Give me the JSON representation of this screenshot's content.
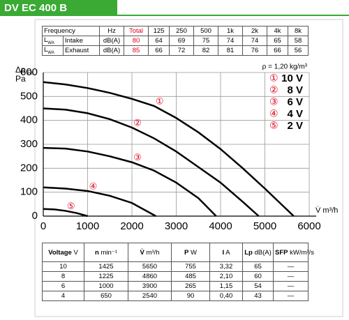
{
  "header": {
    "title": "DV EC 400 B"
  },
  "sound_table": {
    "header": [
      "Frequency",
      "Hz",
      "Total",
      "125",
      "250",
      "500",
      "1k",
      "2k",
      "4k",
      "8k"
    ],
    "rows": [
      {
        "symbol": "L",
        "sub": "WA",
        "name": "Intake",
        "unit": "dB(A)",
        "total": 80,
        "values": [
          64,
          69,
          75,
          74,
          74,
          65,
          58
        ]
      },
      {
        "symbol": "L",
        "sub": "WA",
        "name": "Exhaust",
        "unit": "dB(A)",
        "total": 85,
        "values": [
          66,
          72,
          82,
          81,
          76,
          66,
          56
        ]
      }
    ]
  },
  "chart_data": {
    "type": "line",
    "y_label": "Δp",
    "y_label_sub": "Fa",
    "y_unit": "Pa",
    "x_label": "V̇ m³/h",
    "annotation": "ρ = 1,20 kg/m³",
    "xlim": [
      0,
      6000
    ],
    "xticks": [
      0,
      1000,
      2000,
      3000,
      4000,
      5000,
      6000
    ],
    "ylim": [
      0,
      600
    ],
    "yticks": [
      0,
      100,
      200,
      300,
      400,
      500,
      600
    ],
    "grid": true,
    "series": [
      {
        "name": "10 V",
        "marker": "①",
        "color": "#000000",
        "x": [
          0,
          500,
          1000,
          1500,
          2000,
          2500,
          3000,
          3500,
          4000,
          4500,
          5000,
          5650
        ],
        "values": [
          560,
          550,
          535,
          515,
          490,
          460,
          410,
          350,
          280,
          200,
          115,
          0
        ]
      },
      {
        "name": "8 V",
        "marker": "②",
        "color": "#000000",
        "x": [
          0,
          500,
          1000,
          1500,
          2000,
          2500,
          3000,
          3500,
          4000,
          4500,
          4860
        ],
        "values": [
          450,
          445,
          430,
          405,
          370,
          325,
          270,
          205,
          140,
          60,
          0
        ]
      },
      {
        "name": "6 V",
        "marker": "③",
        "color": "#000000",
        "x": [
          0,
          500,
          1000,
          1500,
          2000,
          2500,
          3000,
          3500,
          3900
        ],
        "values": [
          285,
          282,
          270,
          250,
          225,
          190,
          140,
          75,
          0
        ]
      },
      {
        "name": "4 V",
        "marker": "④",
        "color": "#000000",
        "x": [
          0,
          500,
          1000,
          1500,
          2000,
          2540
        ],
        "values": [
          120,
          115,
          105,
          85,
          55,
          0
        ]
      },
      {
        "name": "2 V",
        "marker": "⑤",
        "color": "#000000",
        "x": [
          0,
          250,
          500,
          750,
          1000
        ],
        "values": [
          30,
          28,
          22,
          13,
          0
        ]
      }
    ]
  },
  "perf_table": {
    "header": [
      {
        "name": "Voltage",
        "unit": "V"
      },
      {
        "name": "n",
        "unit": "min⁻¹"
      },
      {
        "name": "V̇",
        "unit": "m³/h"
      },
      {
        "name": "P",
        "unit": "W"
      },
      {
        "name": "I",
        "unit": "A"
      },
      {
        "name": "Lp",
        "unit": "dB(A)"
      },
      {
        "name": "SFP",
        "unit": "kW/m³/s"
      }
    ],
    "rows": [
      [
        10,
        1425,
        5650,
        755,
        "3,32",
        65,
        "—"
      ],
      [
        8,
        1225,
        4860,
        485,
        "2,10",
        60,
        "—"
      ],
      [
        6,
        1000,
        3900,
        265,
        "1,15",
        54,
        "—"
      ],
      [
        4,
        650,
        2540,
        90,
        "0,40",
        43,
        "—"
      ]
    ]
  }
}
